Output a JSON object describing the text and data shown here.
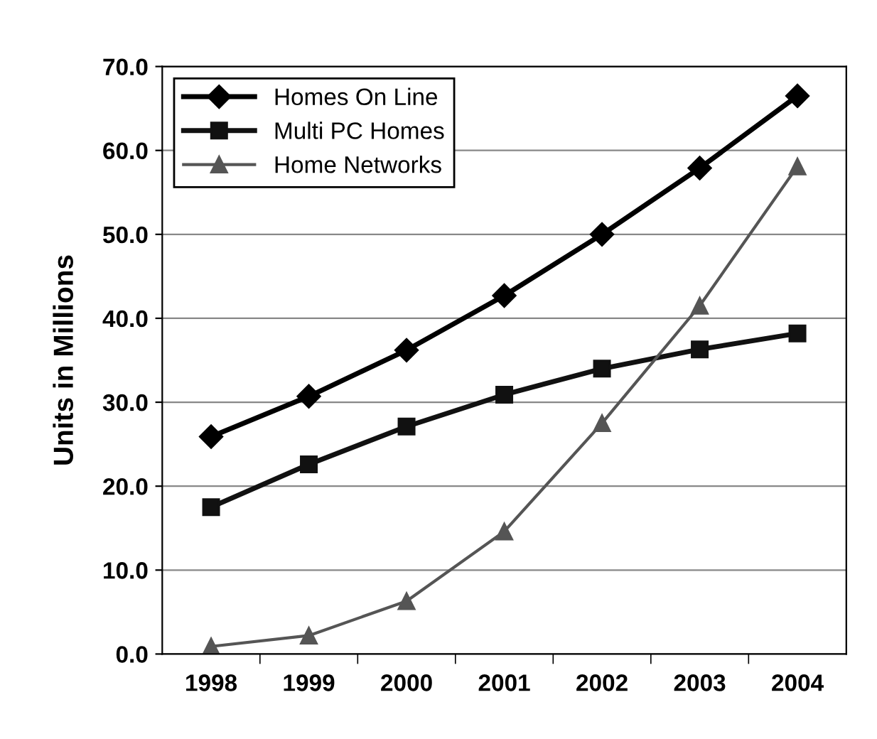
{
  "chart_data": {
    "type": "line",
    "ylabel": "Units in Millions",
    "categories": [
      "1998",
      "1999",
      "2000",
      "2001",
      "2002",
      "2003",
      "2004"
    ],
    "series": [
      {
        "name": "Homes On Line",
        "color": "#000000",
        "marker": "diamond",
        "values": [
          25.9,
          30.7,
          36.2,
          42.7,
          50.0,
          57.9,
          66.5
        ]
      },
      {
        "name": "Multi PC Homes",
        "color": "#111111",
        "marker": "square",
        "values": [
          17.5,
          22.6,
          27.1,
          30.9,
          34.0,
          36.3,
          38.2
        ]
      },
      {
        "name": "Home Networks",
        "color": "#555555",
        "marker": "triangle",
        "values": [
          0.9,
          2.2,
          6.3,
          14.6,
          27.5,
          41.5,
          58.1
        ]
      }
    ],
    "ylim": [
      0,
      70
    ],
    "yticks": [
      {
        "value": 0,
        "label": "0.0"
      },
      {
        "value": 10,
        "label": "10.0"
      },
      {
        "value": 20,
        "label": "20.0"
      },
      {
        "value": 30,
        "label": "30.0"
      },
      {
        "value": 40,
        "label": "40.0"
      },
      {
        "value": 50,
        "label": "50.0"
      },
      {
        "value": 60,
        "label": "60.0"
      },
      {
        "value": 70,
        "label": "70.0"
      }
    ],
    "grid": "y",
    "legend": "top left",
    "line_style": "solid"
  }
}
